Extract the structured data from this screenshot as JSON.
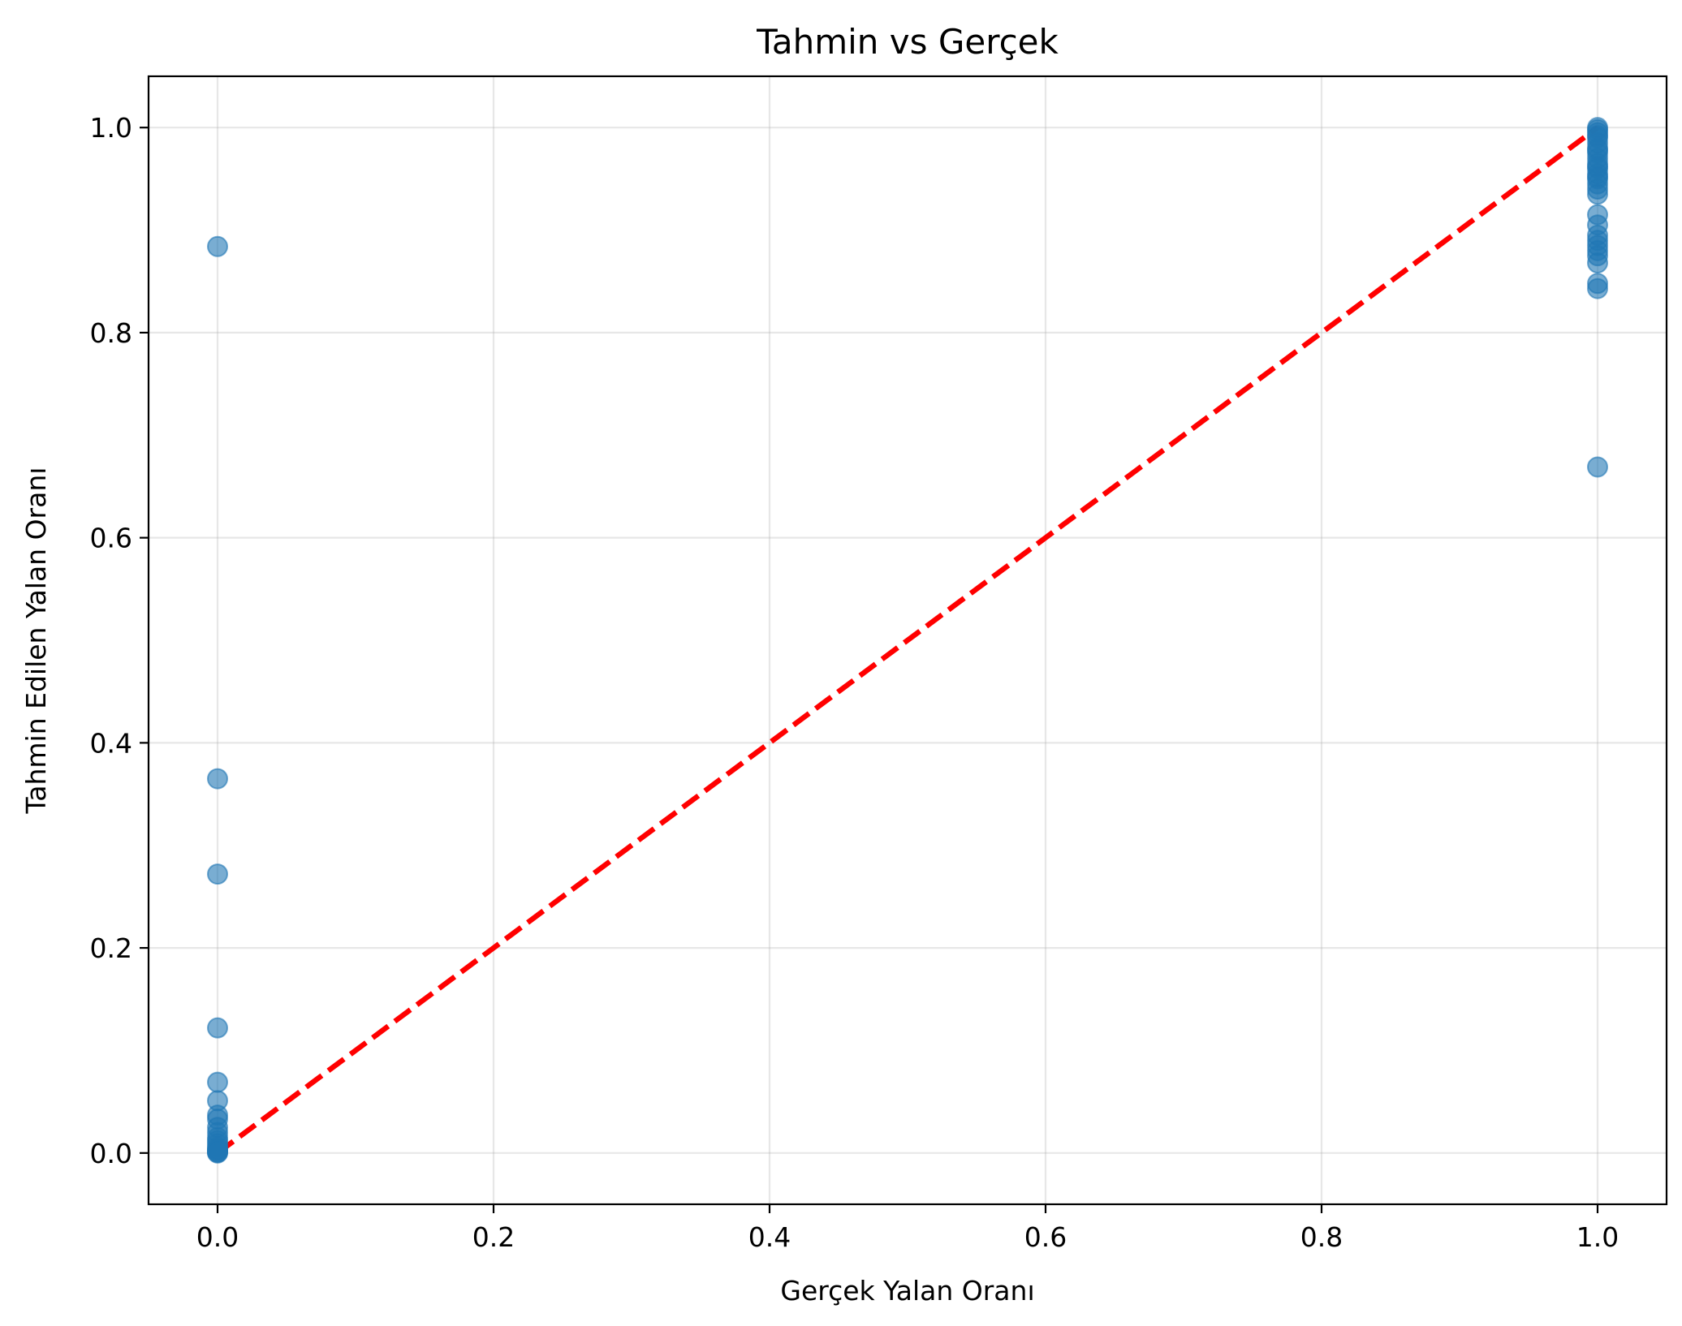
{
  "chart_data": {
    "type": "scatter",
    "title": "Tahmin vs Gerçek",
    "xlabel": "Gerçek Yalan Oranı",
    "ylabel": "Tahmin Edilen Yalan Oranı",
    "xlim": [
      -0.05,
      1.05
    ],
    "ylim": [
      -0.05,
      1.05
    ],
    "xticks": [
      0.0,
      0.2,
      0.4,
      0.6,
      0.8,
      1.0
    ],
    "xtick_labels": [
      "0.0",
      "0.2",
      "0.4",
      "0.6",
      "0.8",
      "1.0"
    ],
    "yticks": [
      0.0,
      0.2,
      0.4,
      0.6,
      0.8,
      1.0
    ],
    "ytick_labels": [
      "0.0",
      "0.2",
      "0.4",
      "0.6",
      "0.8",
      "1.0"
    ],
    "grid": true,
    "colors": {
      "points": "#1f77b4",
      "reference_line": "#ff0000"
    },
    "reference_line": {
      "x": [
        0.0,
        1.0
      ],
      "y": [
        0.0,
        1.0
      ],
      "style": "dashed"
    },
    "series": [
      {
        "x": [
          0,
          0,
          0,
          0,
          0,
          0,
          0,
          0,
          0,
          0,
          0,
          0,
          0,
          0,
          0,
          0,
          0,
          0,
          0,
          0,
          1,
          1,
          1,
          1,
          1,
          1,
          1,
          1,
          1,
          1,
          1,
          1,
          1,
          1,
          1,
          1,
          1,
          1,
          1,
          1,
          1,
          1,
          1,
          1,
          1,
          1,
          1,
          1,
          1,
          1
        ],
        "y": [
          0.884,
          0.365,
          0.272,
          0.122,
          0.069,
          0.051,
          0.037,
          0.033,
          0.025,
          0.02,
          0.015,
          0.012,
          0.009,
          0.006,
          0.004,
          0.003,
          0.002,
          0.001,
          0.0005,
          0.0,
          1.0,
          0.998,
          0.995,
          0.99,
          0.985,
          0.98,
          0.975,
          0.97,
          0.965,
          0.96,
          0.955,
          0.95,
          0.945,
          0.94,
          0.935,
          0.915,
          0.905,
          0.895,
          0.89,
          0.885,
          0.88,
          0.875,
          0.868,
          0.848,
          0.843,
          0.669,
          0.992,
          0.962,
          0.952,
          0.978
        ]
      }
    ]
  }
}
